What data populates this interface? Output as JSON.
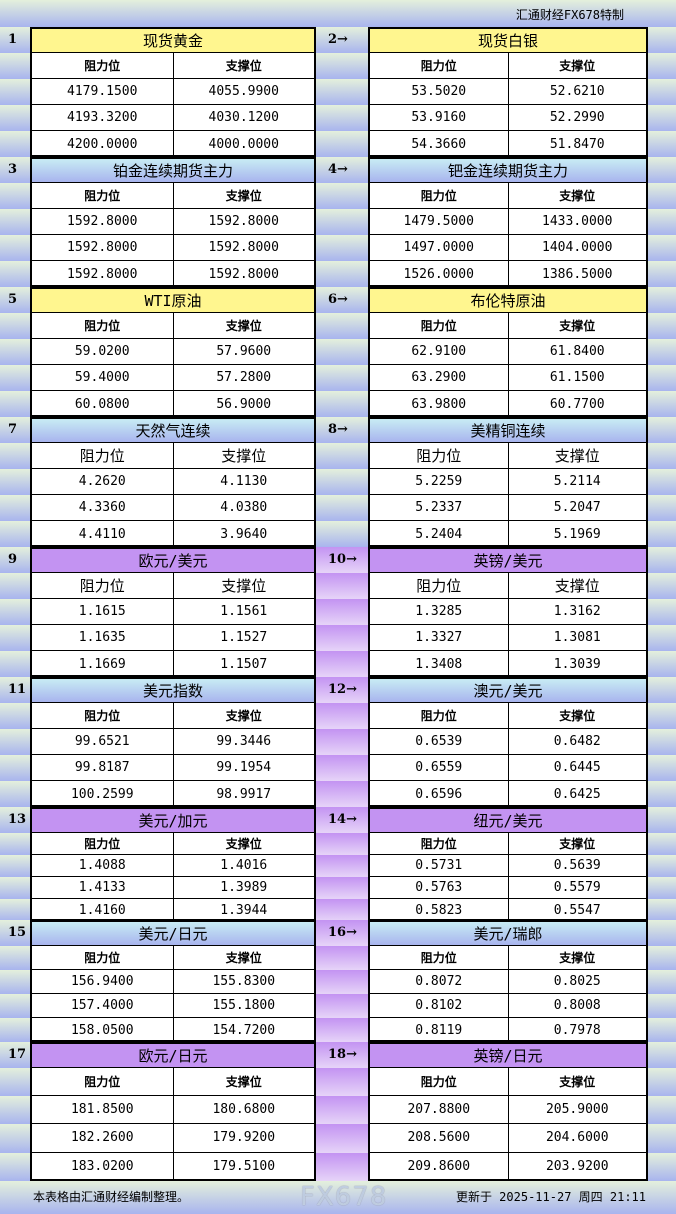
{
  "header": {
    "brand": "汇通财经FX678特制"
  },
  "labels": {
    "resistance": "阻力位",
    "support": "支撑位"
  },
  "colors": {
    "yellow": "#fff68f",
    "blue": "#a8b4ee",
    "purple": "#c393f2"
  },
  "sections": [
    {
      "num": "1",
      "title": "现货黄金",
      "color": "yellow",
      "rows": [
        [
          "4179.1500",
          "4055.9900"
        ],
        [
          "4193.3200",
          "4030.1200"
        ],
        [
          "4200.0000",
          "4000.0000"
        ]
      ]
    },
    {
      "num": "2→",
      "title": "现货白银",
      "color": "yellow",
      "rows": [
        [
          "53.5020",
          "52.6210"
        ],
        [
          "53.9160",
          "52.2990"
        ],
        [
          "54.3660",
          "51.8470"
        ]
      ]
    },
    {
      "num": "3",
      "title": "铂金连续期货主力",
      "color": "blue",
      "rows": [
        [
          "1592.8000",
          "1592.8000"
        ],
        [
          "1592.8000",
          "1592.8000"
        ],
        [
          "1592.8000",
          "1592.8000"
        ]
      ]
    },
    {
      "num": "4→",
      "title": "钯金连续期货主力",
      "color": "blue",
      "rows": [
        [
          "1479.5000",
          "1433.0000"
        ],
        [
          "1497.0000",
          "1404.0000"
        ],
        [
          "1526.0000",
          "1386.5000"
        ]
      ]
    },
    {
      "num": "5",
      "title": "WTI原油",
      "color": "yellow",
      "rows": [
        [
          "59.0200",
          "57.9600"
        ],
        [
          "59.4000",
          "57.2800"
        ],
        [
          "60.0800",
          "56.9000"
        ]
      ]
    },
    {
      "num": "6→",
      "title": "布伦特原油",
      "color": "yellow",
      "rows": [
        [
          "62.9100",
          "61.8400"
        ],
        [
          "63.2900",
          "61.1500"
        ],
        [
          "63.9800",
          "60.7700"
        ]
      ]
    },
    {
      "num": "7",
      "title": "天然气连续",
      "color": "blue",
      "rows": [
        [
          "4.2620",
          "4.1130"
        ],
        [
          "4.3360",
          "4.0380"
        ],
        [
          "4.4110",
          "3.9640"
        ]
      ]
    },
    {
      "num": "8→",
      "title": "美精铜连续",
      "color": "blue",
      "rows": [
        [
          "5.2259",
          "5.2114"
        ],
        [
          "5.2337",
          "5.2047"
        ],
        [
          "5.2404",
          "5.1969"
        ]
      ]
    },
    {
      "num": "9",
      "title": "欧元/美元",
      "color": "purple",
      "rows": [
        [
          "1.1615",
          "1.1561"
        ],
        [
          "1.1635",
          "1.1527"
        ],
        [
          "1.1669",
          "1.1507"
        ]
      ]
    },
    {
      "num": "10→",
      "title": "英镑/美元",
      "color": "purple",
      "rows": [
        [
          "1.3285",
          "1.3162"
        ],
        [
          "1.3327",
          "1.3081"
        ],
        [
          "1.3408",
          "1.3039"
        ]
      ]
    },
    {
      "num": "11",
      "title": "美元指数",
      "color": "blue",
      "rows": [
        [
          "99.6521",
          "99.3446"
        ],
        [
          "99.8187",
          "99.1954"
        ],
        [
          "100.2599",
          "98.9917"
        ]
      ]
    },
    {
      "num": "12→",
      "title": "澳元/美元",
      "color": "blue",
      "rows": [
        [
          "0.6539",
          "0.6482"
        ],
        [
          "0.6559",
          "0.6445"
        ],
        [
          "0.6596",
          "0.6425"
        ]
      ]
    },
    {
      "num": "13",
      "title": "美元/加元",
      "color": "purple",
      "rows": [
        [
          "1.4088",
          "1.4016"
        ],
        [
          "1.4133",
          "1.3989"
        ],
        [
          "1.4160",
          "1.3944"
        ]
      ]
    },
    {
      "num": "14→",
      "title": "纽元/美元",
      "color": "purple",
      "rows": [
        [
          "0.5731",
          "0.5639"
        ],
        [
          "0.5763",
          "0.5579"
        ],
        [
          "0.5823",
          "0.5547"
        ]
      ]
    },
    {
      "num": "15",
      "title": "美元/日元",
      "color": "blue",
      "rows": [
        [
          "156.9400",
          "155.8300"
        ],
        [
          "157.4000",
          "155.1800"
        ],
        [
          "158.0500",
          "154.7200"
        ]
      ]
    },
    {
      "num": "16→",
      "title": "美元/瑞郎",
      "color": "blue",
      "rows": [
        [
          "0.8072",
          "0.8025"
        ],
        [
          "0.8102",
          "0.8008"
        ],
        [
          "0.8119",
          "0.7978"
        ]
      ]
    },
    {
      "num": "17",
      "title": "欧元/日元",
      "color": "purple",
      "rows": [
        [
          "181.8500",
          "180.6800"
        ],
        [
          "182.2600",
          "179.9200"
        ],
        [
          "183.0200",
          "179.5100"
        ]
      ]
    },
    {
      "num": "18→",
      "title": "英镑/日元",
      "color": "purple",
      "rows": [
        [
          "207.8800",
          "205.9000"
        ],
        [
          "208.5600",
          "204.6000"
        ],
        [
          "209.8600",
          "203.9200"
        ]
      ]
    }
  ],
  "footer": {
    "note": "本表格由汇通财经编制整理。",
    "updated": "更新于 2025-11-27 周四 21:11"
  },
  "watermark": "FX678"
}
